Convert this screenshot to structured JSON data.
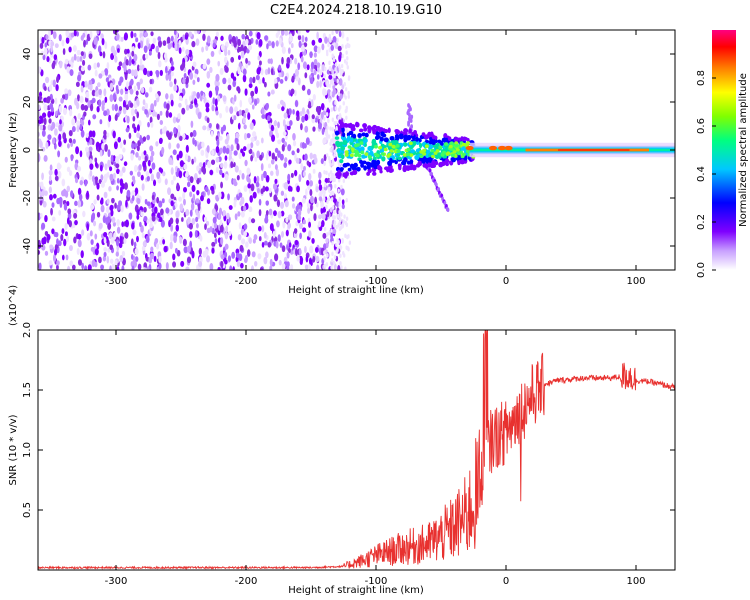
{
  "title": "C2E4.2024.218.10.19.G10",
  "chart_data": [
    {
      "type": "heatmap",
      "title": "C2E4.2024.218.10.19.G10",
      "xlabel": "Height of straight line (km)",
      "ylabel": "Frequency (Hz)",
      "xlim": [
        -360,
        130
      ],
      "ylim": [
        -50,
        50
      ],
      "xticks": [
        -300,
        -200,
        -100,
        0,
        100
      ],
      "yticks": [
        -40,
        -20,
        0,
        20,
        40
      ],
      "colorbar": {
        "label": "Normalized spectral amplitude",
        "range": [
          0,
          1
        ],
        "ticks": [
          "0.0",
          "0.2",
          "0.4",
          "0.6",
          "0.8"
        ],
        "colors": [
          "#ffffff",
          "#7f00ff",
          "#0000ff",
          "#00c8ff",
          "#00ff80",
          "#80ff00",
          "#ffff00",
          "#ff8000",
          "#ff0000",
          "#ff0080"
        ]
      },
      "features": [
        {
          "region": "x -360 to -125 km",
          "description": "Broadband noise, purple speckle across all frequencies, amplitude ~0.1-0.2"
        },
        {
          "region": "x -130 to -25 km",
          "description": "Cyan/green band around 0 Hz, width about +/-10 Hz"
        },
        {
          "region": "x -25 to 130 km",
          "description": "Narrow signal near 0 Hz, peak red/orange amplitude ~0.8-1.0"
        }
      ]
    },
    {
      "type": "line",
      "xlabel": "Height of straight line (km)",
      "ylabel": "SNR (10 * v/v)",
      "y_multiplier": "(x10^4)",
      "xlim": [
        -360,
        130
      ],
      "ylim": [
        0,
        2.0
      ],
      "xticks": [
        -300,
        -200,
        -100,
        0,
        100
      ],
      "yticks": [
        "0.5",
        "1.0",
        "1.5",
        "2.0"
      ],
      "series": [
        {
          "name": "SNR",
          "color": "#e8312f",
          "x": [
            -360,
            -300,
            -250,
            -200,
            -150,
            -125,
            -110,
            -100,
            -90,
            -80,
            -70,
            -60,
            -50,
            -40,
            -30,
            -20,
            -15,
            -10,
            0,
            10,
            20,
            30,
            40,
            60,
            80,
            95,
            100,
            110,
            130
          ],
          "values": [
            0.02,
            0.02,
            0.02,
            0.02,
            0.02,
            0.03,
            0.08,
            0.12,
            0.15,
            0.18,
            0.2,
            0.22,
            0.28,
            0.35,
            0.45,
            0.7,
            1.0,
            1.1,
            1.15,
            1.3,
            1.45,
            1.55,
            1.58,
            1.6,
            1.6,
            1.62,
            1.58,
            1.57,
            1.52
          ]
        }
      ]
    }
  ]
}
